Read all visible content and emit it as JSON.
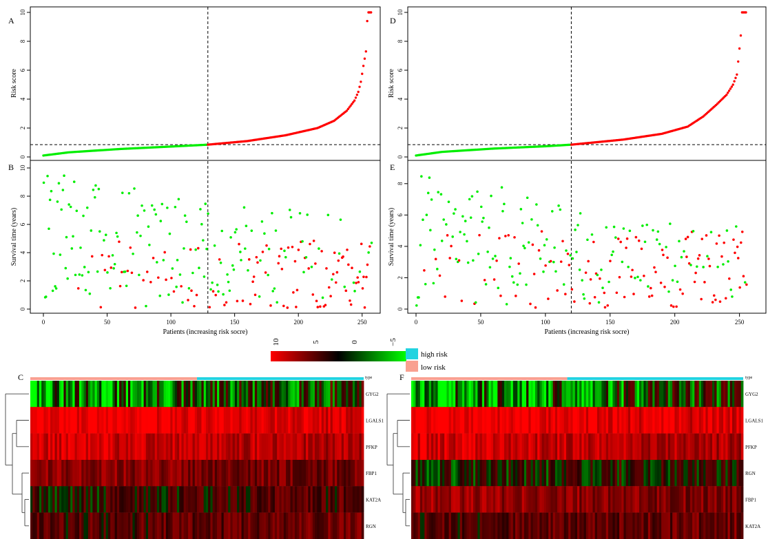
{
  "colors": {
    "high": "#ff0000",
    "low": "#00ee00",
    "high_risk_bar": "#22d3e0",
    "low_risk_bar": "#f9a090"
  },
  "colorkey": {
    "ticks": [
      "10",
      "5",
      "0",
      "−5"
    ]
  },
  "legend": {
    "high": "high risk",
    "low": "low risk"
  },
  "chart_data": [
    {
      "id": "A",
      "panel_label": "A",
      "type": "scatter",
      "ylabel": "Risk score",
      "n": 258,
      "cutoff_index": 129,
      "cutoff_value": 0.85,
      "ylim": [
        0,
        10
      ],
      "yticks": [
        0,
        2,
        4,
        6,
        8,
        10
      ],
      "curve": [
        [
          0,
          0.1
        ],
        [
          20,
          0.32
        ],
        [
          60,
          0.55
        ],
        [
          100,
          0.72
        ],
        [
          129,
          0.85
        ],
        [
          160,
          1.1
        ],
        [
          190,
          1.5
        ],
        [
          215,
          2.0
        ],
        [
          228,
          2.5
        ],
        [
          238,
          3.2
        ],
        [
          244,
          3.9
        ],
        [
          247,
          4.5
        ],
        [
          249,
          5.2
        ],
        [
          251,
          6.3
        ],
        [
          253,
          7.3
        ],
        [
          254,
          9.4
        ],
        [
          255,
          10
        ]
      ]
    },
    {
      "id": "B",
      "panel_label": "B",
      "type": "scatter",
      "ylabel": "Survival time (years)",
      "xlabel": "Patients (increasing risk socre)",
      "n": 258,
      "cutoff_index": 129,
      "ylim": [
        0,
        10
      ],
      "yticks": [
        0,
        2,
        4,
        6,
        8,
        10
      ],
      "xticks": [
        0,
        50,
        100,
        150,
        200,
        250
      ]
    },
    {
      "id": "D",
      "panel_label": "D",
      "type": "scatter",
      "ylabel": "Risk score",
      "n": 256,
      "cutoff_index": 120,
      "cutoff_value": 0.85,
      "ylim": [
        0,
        10
      ],
      "yticks": [
        0,
        2,
        4,
        6,
        8,
        10
      ],
      "curve": [
        [
          0,
          0.1
        ],
        [
          20,
          0.35
        ],
        [
          60,
          0.58
        ],
        [
          100,
          0.74
        ],
        [
          120,
          0.85
        ],
        [
          160,
          1.2
        ],
        [
          190,
          1.6
        ],
        [
          210,
          2.1
        ],
        [
          222,
          2.8
        ],
        [
          232,
          3.6
        ],
        [
          240,
          4.3
        ],
        [
          245,
          5.0
        ],
        [
          248,
          5.7
        ],
        [
          250,
          7.5
        ],
        [
          251,
          8.4
        ],
        [
          252,
          10
        ]
      ]
    },
    {
      "id": "E",
      "panel_label": "E",
      "type": "scatter",
      "ylabel": "Survival time (years)",
      "xlabel": "Patients (increasing risk socre)",
      "n": 256,
      "cutoff_index": 120,
      "ylim": [
        0,
        9
      ],
      "yticks": [
        0,
        2,
        4,
        6,
        8
      ],
      "xticks": [
        0,
        50,
        100,
        150,
        200,
        250
      ]
    },
    {
      "id": "C",
      "panel_label": "C",
      "type": "heatmap",
      "rows": [
        "GYG2",
        "LGALS1",
        "PFKP",
        "FBP1",
        "KAT2A",
        "RGN"
      ],
      "row_means": [
        -1.5,
        9.0,
        7.0,
        4.0,
        1.5,
        2.5
      ],
      "type_label": "type",
      "low_fraction": 0.5
    },
    {
      "id": "F",
      "panel_label": "F",
      "type": "heatmap",
      "rows": [
        "GYG2",
        "LGALS1",
        "PFKP",
        "RGN",
        "FBP1",
        "KAT2A"
      ],
      "row_means": [
        -1.5,
        9.0,
        7.0,
        0.5,
        4.5,
        2.5
      ],
      "type_label": "type",
      "low_fraction": 0.47
    }
  ]
}
